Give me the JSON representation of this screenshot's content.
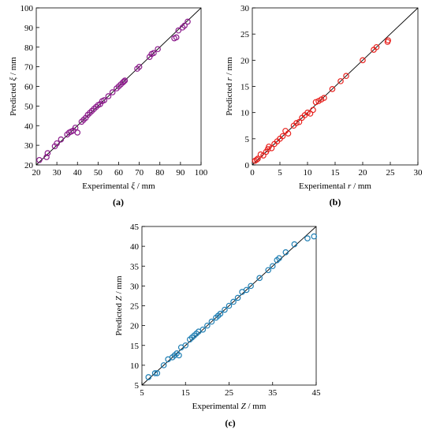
{
  "chart_data": [
    {
      "type": "scatter",
      "panel_label": "(a)",
      "xlabel": {
        "pre": "Experimental ",
        "var": "ξ",
        "post": " / mm"
      },
      "ylabel": {
        "pre": "Predicted ",
        "var": "ξ",
        "post": " / mm"
      },
      "xlim": [
        20,
        100
      ],
      "ylim": [
        20,
        100
      ],
      "xticks": [
        20,
        30,
        40,
        50,
        60,
        70,
        80,
        90,
        100
      ],
      "yticks": [
        20,
        30,
        40,
        50,
        60,
        70,
        80,
        90,
        100
      ],
      "marker_color": "#8b1a8b",
      "reference_line": [
        [
          20,
          20
        ],
        [
          100,
          100
        ]
      ],
      "series": [
        {
          "x": [
            21.5,
            25,
            25.5,
            29,
            30,
            32,
            35,
            36,
            37,
            38,
            39,
            40,
            42,
            43,
            44,
            45,
            46,
            47,
            48,
            49,
            50,
            51,
            52,
            53,
            55,
            57,
            59,
            60,
            61,
            62,
            62.5,
            63,
            69,
            70,
            75,
            76,
            77,
            79,
            87,
            88,
            89,
            91,
            92,
            93.5
          ],
          "y": [
            22.5,
            24,
            26,
            29.5,
            31,
            33,
            35.5,
            36.5,
            37,
            37.5,
            39,
            36.5,
            42,
            43,
            44,
            45.5,
            46.5,
            47.5,
            48.5,
            49.5,
            50.5,
            51,
            52.5,
            53,
            55,
            57,
            59,
            60,
            61,
            62,
            62.5,
            63,
            69,
            70,
            75,
            76.5,
            77,
            79,
            84.5,
            85,
            88.5,
            90,
            91,
            93
          ]
        }
      ]
    },
    {
      "type": "scatter",
      "panel_label": "(b)",
      "xlabel": {
        "pre": "Experimental ",
        "var": "r",
        "post": " / mm"
      },
      "ylabel": {
        "pre": "Predicted ",
        "var": "r",
        "post": " / mm"
      },
      "xlim": [
        0,
        30
      ],
      "ylim": [
        0,
        30
      ],
      "xticks": [
        0,
        5,
        10,
        15,
        20,
        25,
        30
      ],
      "yticks": [
        0,
        5,
        10,
        15,
        20,
        25,
        30
      ],
      "marker_color": "#e8231f",
      "reference_line": [
        [
          0,
          0
        ],
        [
          30,
          30
        ]
      ],
      "series": [
        {
          "x": [
            0.5,
            0.8,
            1.0,
            1.5,
            2.0,
            2.5,
            2.8,
            3.0,
            3.5,
            4.0,
            4.5,
            5.0,
            5.5,
            6.0,
            6.5,
            7.5,
            8.0,
            8.5,
            9.0,
            9.5,
            10.0,
            10.5,
            11.0,
            11.5,
            12.0,
            12.5,
            13.0,
            14.5,
            16.0,
            17.0,
            20.0,
            22.0,
            22.5,
            24.5,
            24.6
          ],
          "y": [
            0.8,
            1.0,
            1.2,
            2.0,
            1.8,
            2.5,
            3.0,
            3.5,
            3.2,
            4.0,
            4.5,
            5.0,
            5.5,
            6.5,
            6.0,
            7.5,
            8.0,
            8.2,
            9.0,
            9.5,
            10.0,
            9.8,
            10.5,
            12.0,
            12.2,
            12.5,
            12.8,
            14.5,
            16.0,
            17.0,
            20.0,
            22.0,
            22.5,
            23.5,
            23.8
          ]
        }
      ]
    },
    {
      "type": "scatter",
      "panel_label": "(c)",
      "xlabel": {
        "pre": "Experimental ",
        "var": "Z",
        "post": " / mm"
      },
      "ylabel": {
        "pre": "Predicted ",
        "var": "Z",
        "post": " / mm"
      },
      "xlim": [
        5,
        45
      ],
      "ylim": [
        5,
        45
      ],
      "xticks": [
        5,
        15,
        25,
        35,
        45
      ],
      "yticks": [
        5,
        10,
        15,
        20,
        25,
        30,
        35,
        40,
        45
      ],
      "marker_color": "#1f7fb4",
      "reference_line": [
        [
          5,
          5
        ],
        [
          45,
          45
        ]
      ],
      "series": [
        {
          "x": [
            6.5,
            8.0,
            8.5,
            10.0,
            11.0,
            12.0,
            12.5,
            13.0,
            13.5,
            14.0,
            15.0,
            16.0,
            16.5,
            17.0,
            17.5,
            18.0,
            19.0,
            20.0,
            21.0,
            22.0,
            22.5,
            23.0,
            24.0,
            25.0,
            26.0,
            27.0,
            28.0,
            29.0,
            30.0,
            32.0,
            34.0,
            35.0,
            36.0,
            36.5,
            38.0,
            40.0,
            43.0,
            44.5
          ],
          "y": [
            7.0,
            8.0,
            8.0,
            10.0,
            11.5,
            12.0,
            12.5,
            13.0,
            12.5,
            14.5,
            15.0,
            16.5,
            17.0,
            17.5,
            18.0,
            18.5,
            19.0,
            20.0,
            21.0,
            22.0,
            22.5,
            23.0,
            24.0,
            25.0,
            26.0,
            27.0,
            28.5,
            29.0,
            30.0,
            32.0,
            34.0,
            35.0,
            36.5,
            37.0,
            38.5,
            40.5,
            42.0,
            42.5
          ]
        }
      ]
    }
  ]
}
